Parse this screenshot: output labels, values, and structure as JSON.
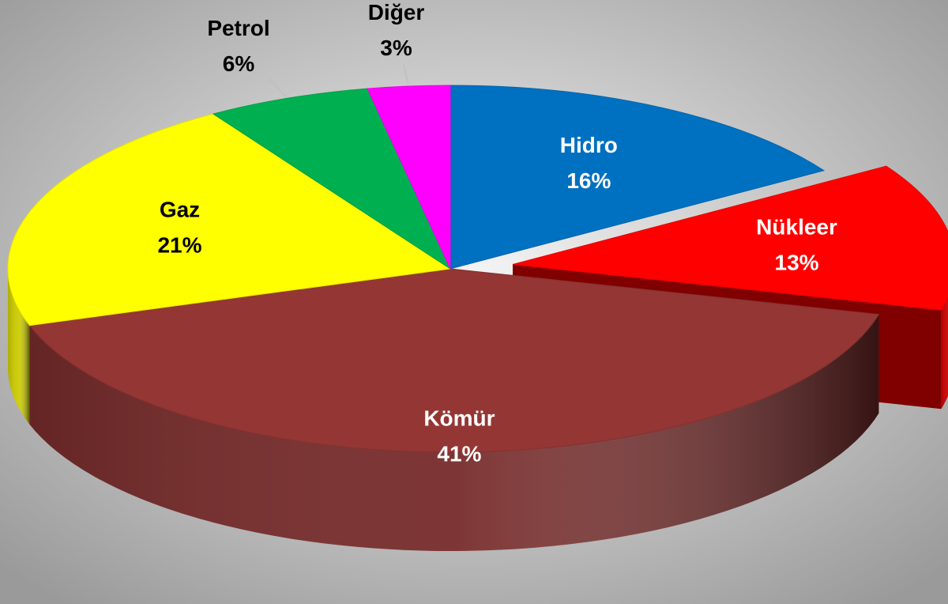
{
  "chart_data": {
    "type": "pie3d",
    "categories": [
      "Hidro",
      "Nükleer",
      "Kömür",
      "Gaz",
      "Petrol",
      "Diğer"
    ],
    "values": [
      16,
      13,
      41,
      21,
      6,
      3
    ],
    "value_labels": [
      "16%",
      "13%",
      "41%",
      "21%",
      "6%",
      "3%"
    ],
    "colors": [
      "#0070c0",
      "#ff0000",
      "#943634",
      "#ffff00",
      "#00b050",
      "#ff00ff"
    ],
    "exploded": [
      false,
      true,
      false,
      false,
      false,
      false
    ]
  }
}
